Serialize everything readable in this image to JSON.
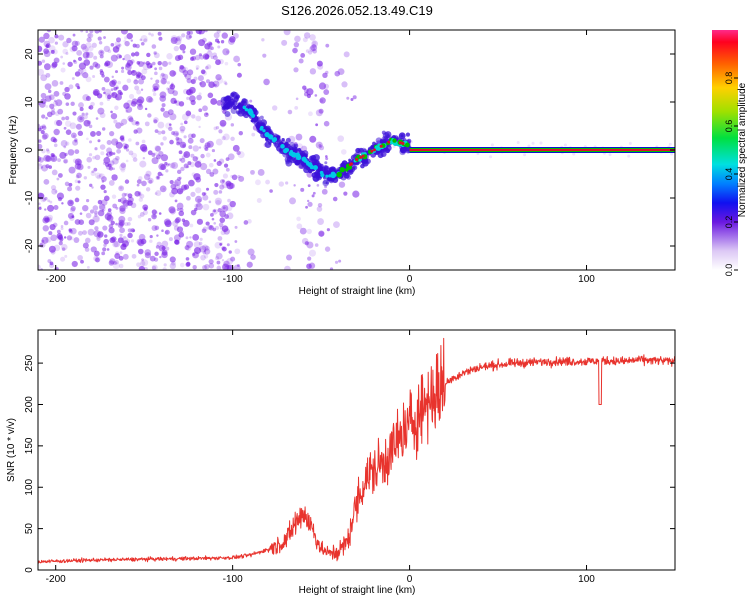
{
  "title": "S126.2026.052.13.49.C19",
  "colors": {
    "snr_line": "#e8332d",
    "track_red": "#d9102a",
    "track_green": "#00c000",
    "track_blue": "#1010d0",
    "scatter": "#7a22e6"
  },
  "chart_data": [
    {
      "type": "heatmap",
      "title": "S126.2026.052.13.49.C19",
      "xlabel": "Height of straight line (km)",
      "ylabel": "Frequency (Hz)",
      "xlim": [
        -210,
        150
      ],
      "ylim": [
        -25,
        25
      ],
      "xticks": [
        -200,
        -100,
        0,
        100
      ],
      "yticks": [
        -20,
        -10,
        0,
        10,
        20
      ],
      "colorbar": {
        "label": "Normalized spectral amplitude",
        "range": [
          0,
          1
        ],
        "ticks": [
          0.0,
          0.2,
          0.4,
          0.6,
          0.8
        ]
      },
      "tone": {
        "x_start": 0,
        "x_end": 150,
        "frequency_hz": 0,
        "amplitude": 1.0
      },
      "ridge": [
        {
          "x": -100,
          "y": 10
        },
        {
          "x": -90,
          "y": 8
        },
        {
          "x": -80,
          "y": 3
        },
        {
          "x": -70,
          "y": 0
        },
        {
          "x": -60,
          "y": -2
        },
        {
          "x": -50,
          "y": -5
        },
        {
          "x": -40,
          "y": -5
        },
        {
          "x": -30,
          "y": -2
        },
        {
          "x": -20,
          "y": 0
        },
        {
          "x": -10,
          "y": 2
        },
        {
          "x": 0,
          "y": 1
        }
      ]
    },
    {
      "type": "line",
      "xlabel": "Height of straight line (km)",
      "ylabel": "SNR (10 * v/v)",
      "xlim": [
        -210,
        150
      ],
      "ylim": [
        0,
        290
      ],
      "xticks": [
        -200,
        -100,
        0,
        100
      ],
      "yticks": [
        0,
        50,
        100,
        150,
        200,
        250
      ],
      "series": [
        {
          "name": "SNR",
          "x": [
            -210,
            -180,
            -150,
            -120,
            -100,
            -90,
            -80,
            -70,
            -65,
            -60,
            -55,
            -50,
            -45,
            -40,
            -35,
            -30,
            -25,
            -20,
            -15,
            -10,
            -5,
            0,
            5,
            10,
            15,
            20,
            25,
            30,
            40,
            50,
            60,
            80,
            100,
            110,
            120,
            130,
            140,
            150
          ],
          "values": [
            10,
            12,
            13,
            14,
            15,
            18,
            25,
            35,
            55,
            70,
            50,
            25,
            20,
            22,
            35,
            80,
            110,
            120,
            130,
            145,
            160,
            175,
            190,
            205,
            215,
            225,
            232,
            238,
            245,
            248,
            250,
            252,
            252,
            253,
            252,
            254,
            253,
            252
          ]
        }
      ]
    }
  ]
}
